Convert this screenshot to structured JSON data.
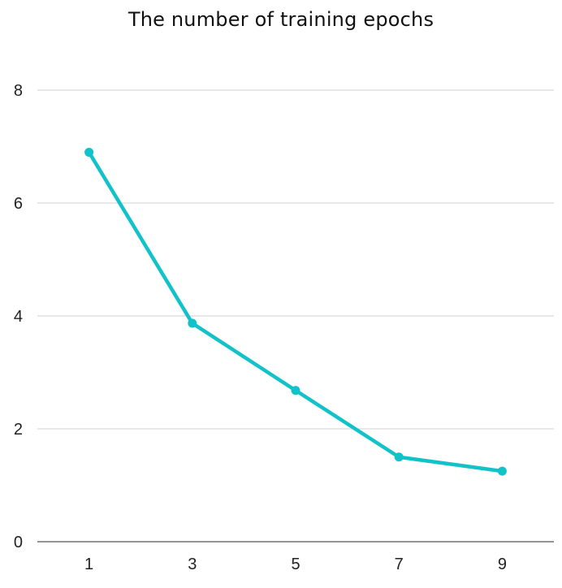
{
  "chart_data": {
    "type": "line",
    "title": "The number of training epochs",
    "xlabel": "",
    "ylabel": "",
    "categories": [
      "1",
      "3",
      "5",
      "7",
      "9"
    ],
    "series": [
      {
        "values": [
          6.9,
          3.87,
          2.68,
          1.5,
          1.25
        ]
      }
    ],
    "y_ticks": [
      "0",
      "2",
      "4",
      "6",
      "8"
    ],
    "ylim": [
      0,
      8
    ],
    "grid": "horizontal",
    "legend": "none",
    "colors": {
      "line": "#12c2c9",
      "grid": "#d0d0d0",
      "axis": "#555555"
    }
  }
}
